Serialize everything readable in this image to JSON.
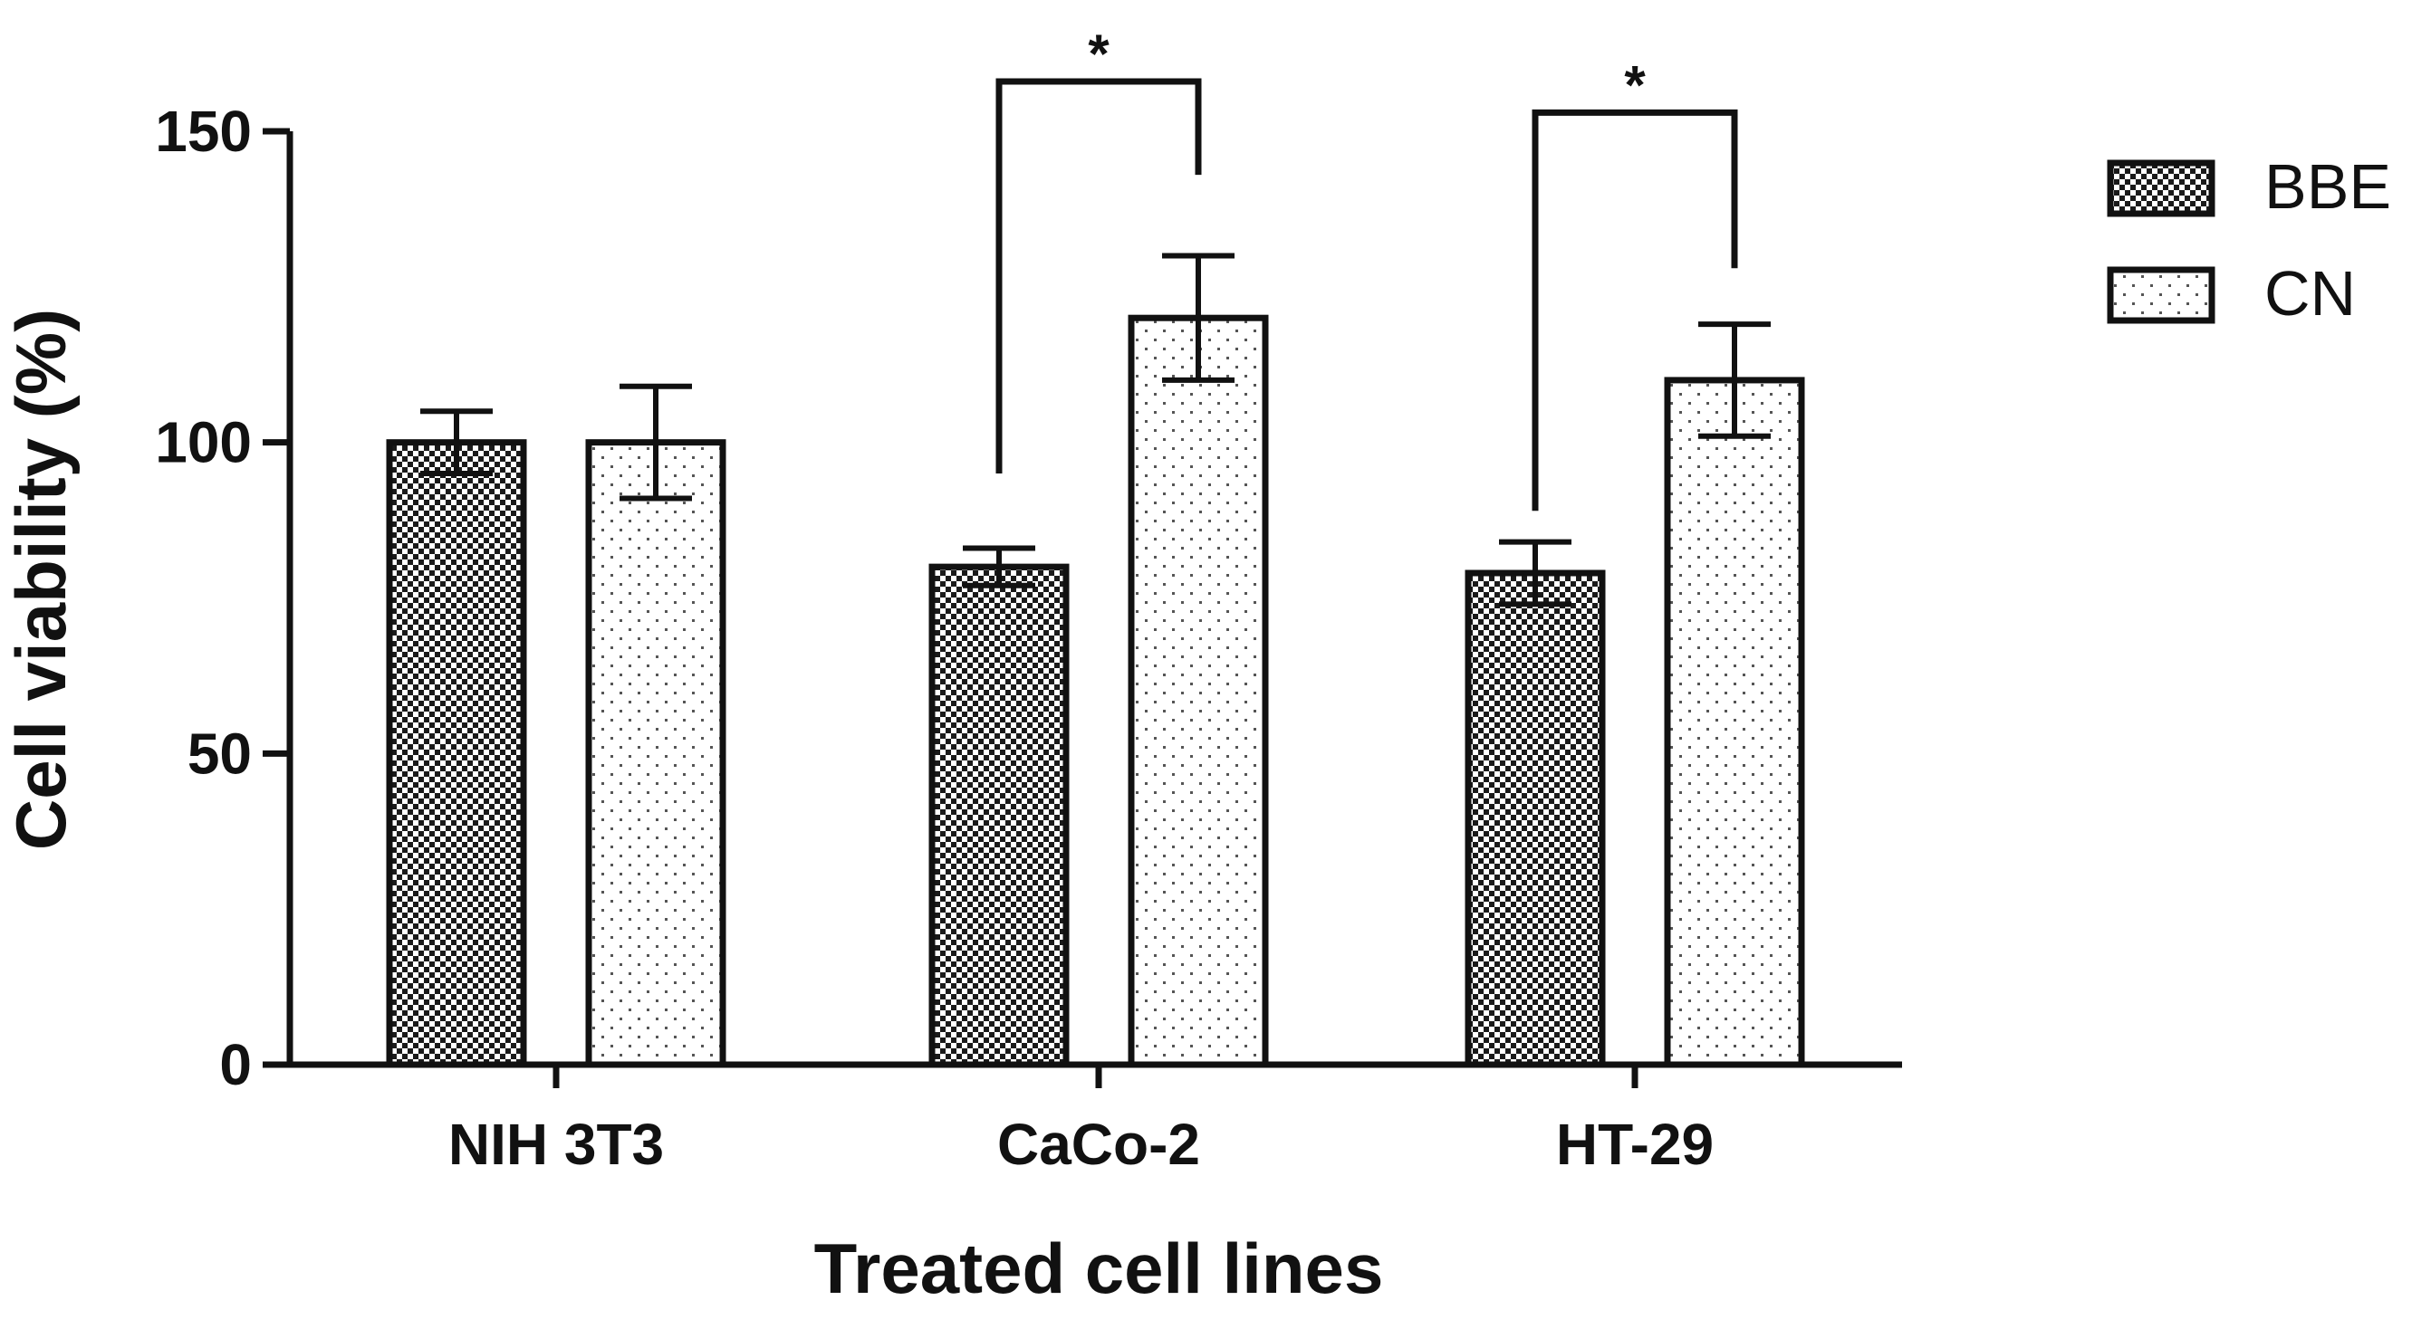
{
  "chart_data": {
    "type": "bar",
    "xlabel": "Treated cell lines",
    "ylabel": "Cell viability (%)",
    "ylim": [
      0,
      150
    ],
    "yticks": [
      0,
      50,
      100,
      150
    ],
    "categories": [
      "NIH 3T3",
      "CaCo-2",
      "HT-29"
    ],
    "series": [
      {
        "name": "BBE",
        "pattern": "checker",
        "values": [
          100,
          80,
          79
        ],
        "errors": [
          5,
          3,
          5
        ]
      },
      {
        "name": "CN",
        "pattern": "dots",
        "values": [
          100,
          120,
          110
        ],
        "errors": [
          9,
          10,
          9
        ]
      }
    ],
    "significance": [
      {
        "category": "CaCo-2",
        "label": "*",
        "left_y": 95,
        "right_y": 143,
        "line_y": 158
      },
      {
        "category": "HT-29",
        "label": "*",
        "left_y": 89,
        "right_y": 128,
        "line_y": 153
      }
    ],
    "legend_position": "top-right",
    "colors": {
      "line": "#111111",
      "bar_fill": "#ffffff"
    }
  }
}
